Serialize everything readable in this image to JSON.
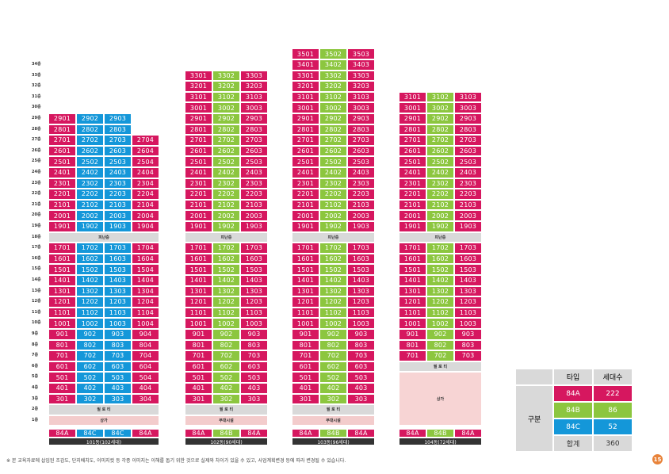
{
  "floors": [
    "34층",
    "33층",
    "32층",
    "31층",
    "30층",
    "29층",
    "28층",
    "27층",
    "26층",
    "25층",
    "24층",
    "23층",
    "22층",
    "21층",
    "20층",
    "19층",
    "18층",
    "17층",
    "16층",
    "15층",
    "14층",
    "13층",
    "12층",
    "11층",
    "10층",
    "9층",
    "8층",
    "7층",
    "6층",
    "5층",
    "4층",
    "3층",
    "2층",
    "1층"
  ],
  "labels": {
    "refuge": "피난층",
    "piloti": "필 로 티",
    "shop": "상가",
    "amenity": "부대시설"
  },
  "buildings": [
    {
      "name": "101동(102세대)",
      "types": [
        "84A",
        "84C",
        "84C",
        "84A"
      ]
    },
    {
      "name": "102동(90세대)",
      "types": [
        "84A",
        "84B",
        "84A"
      ]
    },
    {
      "name": "103동(96세대)",
      "types": [
        "84A",
        "84B",
        "84A"
      ]
    },
    {
      "name": "104동(72세대)",
      "types": [
        "84A",
        "84B",
        "84A"
      ]
    }
  ],
  "legend": {
    "header_group": "구분",
    "col_type": "타입",
    "col_units": "세대수",
    "rows": [
      {
        "type": "84A",
        "units": "222",
        "color": "#d6175f"
      },
      {
        "type": "84B",
        "units": "86",
        "color": "#8cc63f"
      },
      {
        "type": "84C",
        "units": "52",
        "color": "#1497d9"
      },
      {
        "type": "합계",
        "units": "360",
        "color": "#d9d9d9"
      }
    ]
  },
  "footnote": "※ 본 교육자료에 삽입된 조감도, 단지배치도, 이미지컷 등 각종 이미지는 이해를 돕기 위한 것으로 실제와 차이가 있을 수 있고, 사업계획변경 등에 따라 변경될 수 있습니다.",
  "page_number": "15",
  "colors": {
    "pink": "#d6175f",
    "green": "#8cc63f",
    "blue": "#1497d9",
    "gray": "#d9d9d9",
    "dark": "#333333"
  }
}
